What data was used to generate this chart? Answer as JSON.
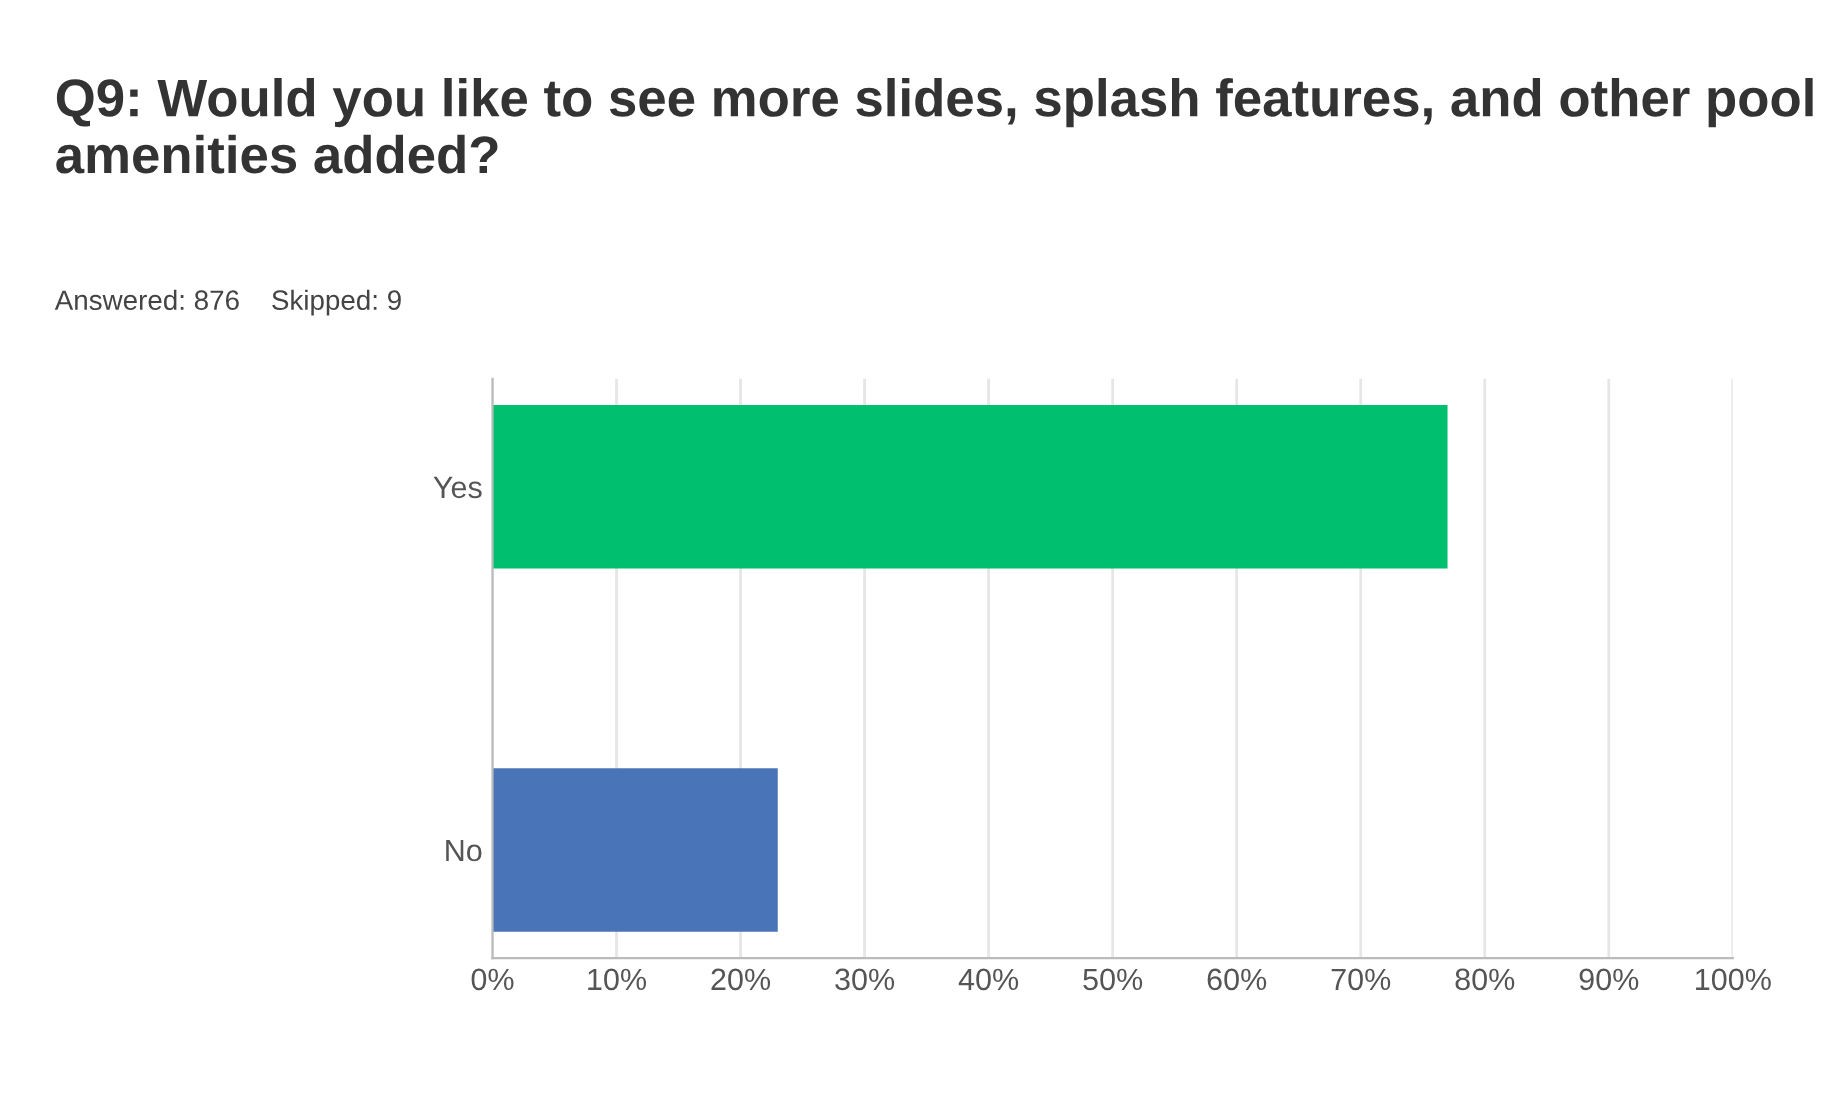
{
  "chart_data": {
    "type": "bar",
    "orientation": "horizontal",
    "title": "Q9: Would you like to see more slides, splash features, and other pool amenities added?",
    "subtitle": "Answered: 876    Skipped: 9",
    "categories": [
      "Yes",
      "No"
    ],
    "values": [
      77,
      23
    ],
    "colors": [
      "#00bf6f",
      "#4a74b8"
    ],
    "xlim": [
      0,
      100
    ],
    "xticks": [
      {
        "value": 0,
        "label": "0%"
      },
      {
        "value": 10,
        "label": "10%"
      },
      {
        "value": 20,
        "label": "20%"
      },
      {
        "value": 30,
        "label": "30%"
      },
      {
        "value": 40,
        "label": "40%"
      },
      {
        "value": 50,
        "label": "50%"
      },
      {
        "value": 60,
        "label": "60%"
      },
      {
        "value": 70,
        "label": "70%"
      },
      {
        "value": 80,
        "label": "80%"
      },
      {
        "value": 90,
        "label": "90%"
      },
      {
        "value": 100,
        "label": "100%"
      }
    ],
    "grid": "x"
  }
}
